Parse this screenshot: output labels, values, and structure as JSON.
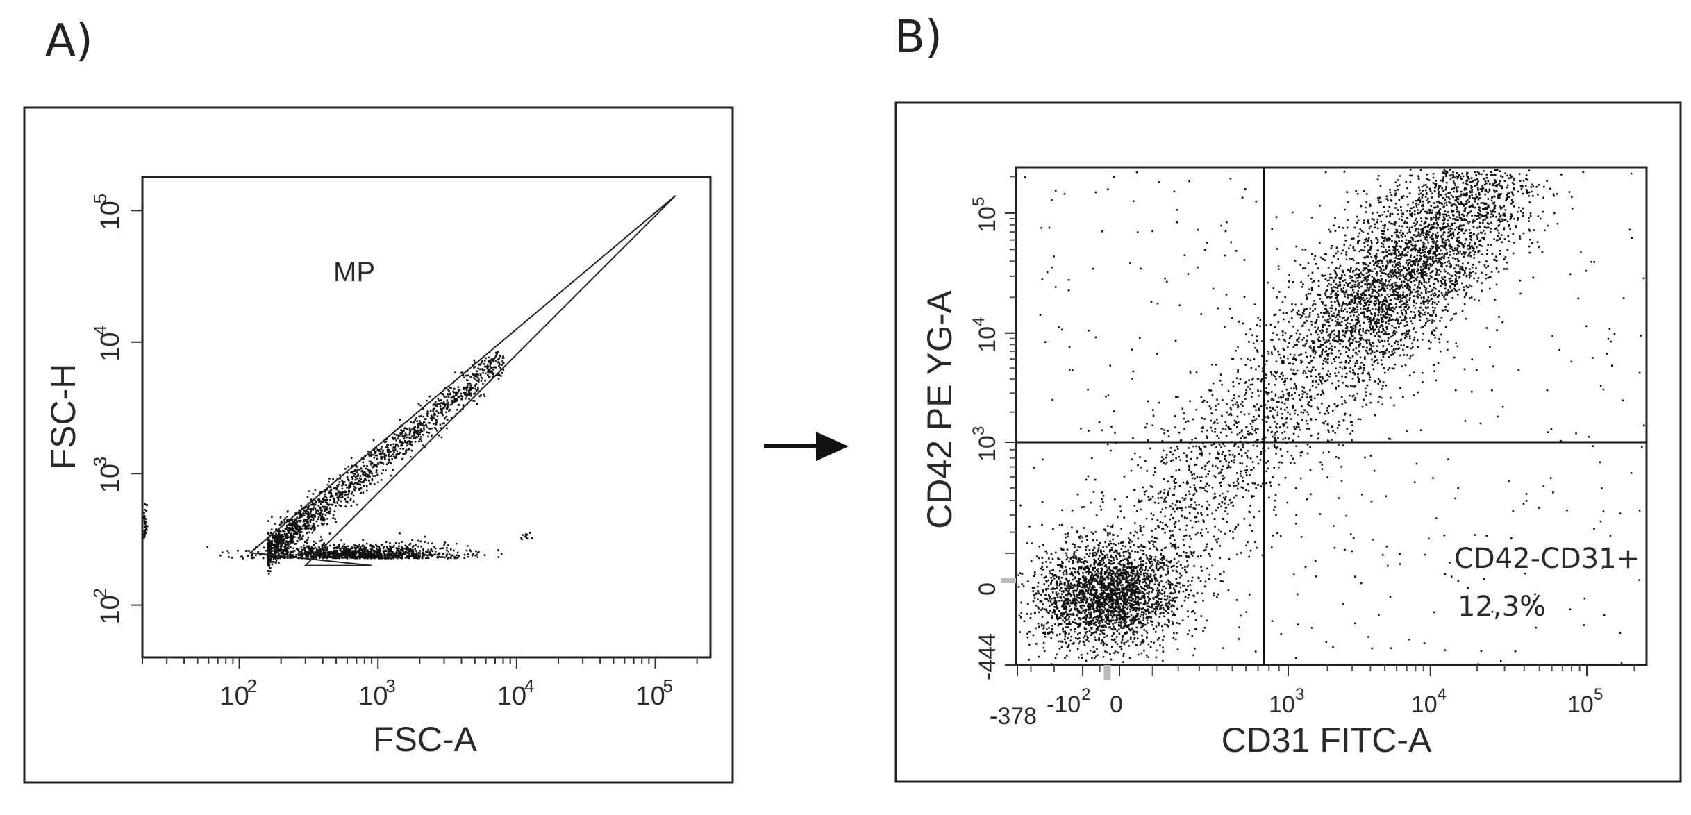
{
  "colors": {
    "ink": "#1a1a1a",
    "frame": "#222222",
    "background": "#ffffff"
  },
  "figure": {
    "arrow_icon": "right-arrow-icon"
  },
  "chart_data": [
    {
      "panel_label": "A)",
      "type": "scatter",
      "title": "",
      "xlabel": "FSC-A",
      "ylabel": "FSC-H",
      "x_scale": "log",
      "y_scale": "log",
      "xlim": [
        20,
        250000
      ],
      "ylim": [
        40,
        180000
      ],
      "x_ticks": [
        {
          "value": 100,
          "base": "10",
          "exp": "2"
        },
        {
          "value": 1000,
          "base": "10",
          "exp": "3"
        },
        {
          "value": 10000,
          "base": "10",
          "exp": "4"
        },
        {
          "value": 100000,
          "base": "10",
          "exp": "5"
        }
      ],
      "y_ticks": [
        {
          "value": 100,
          "base": "10",
          "exp": "2"
        },
        {
          "value": 1000,
          "base": "10",
          "exp": "3"
        },
        {
          "value": 10000,
          "base": "10",
          "exp": "4"
        },
        {
          "value": 100000,
          "base": "10",
          "exp": "5"
        }
      ],
      "gate": {
        "name": "MP",
        "name_position": [
          500,
          35000
        ],
        "shape": "polygon",
        "vertices": [
          [
            120,
            250
          ],
          [
            140000,
            130000
          ],
          [
            300,
            200
          ],
          [
            900,
            200
          ]
        ]
      },
      "populations": [
        {
          "name": "diagonal",
          "count": 1600,
          "x_range_log": [
            2.2,
            3.9
          ],
          "spread_log": 0.07
        },
        {
          "name": "base-cluster",
          "count": 1100,
          "center": [
            700,
            230
          ],
          "spread_log": [
            0.35,
            0.05
          ]
        },
        {
          "name": "left-edge",
          "count": 120,
          "center": [
            20,
            330
          ],
          "spread_log": [
            0.01,
            0.12
          ]
        },
        {
          "name": "outlier",
          "count": 12,
          "center": [
            11500,
            320
          ],
          "spread_log": [
            0.03,
            0.03
          ]
        }
      ]
    },
    {
      "panel_label": "B)",
      "type": "scatter",
      "title": "",
      "xlabel": "CD31 FITC-A",
      "ylabel": "CD42 PE YG-A",
      "x_scale": "biexponential",
      "y_scale": "biexponential",
      "x_ticks": [
        {
          "value": -378,
          "base": "-378",
          "exp": ""
        },
        {
          "value": -100,
          "base": "-10",
          "exp": "2"
        },
        {
          "value": 0,
          "base": "0",
          "exp": ""
        },
        {
          "value": 1000,
          "base": "10",
          "exp": "3"
        },
        {
          "value": 10000,
          "base": "10",
          "exp": "4"
        },
        {
          "value": 100000,
          "base": "10",
          "exp": "5"
        }
      ],
      "y_ticks": [
        {
          "value": -444,
          "base": "-444",
          "exp": ""
        },
        {
          "value": 0,
          "base": "0",
          "exp": ""
        },
        {
          "value": 1000,
          "base": "10",
          "exp": "3"
        },
        {
          "value": 10000,
          "base": "10",
          "exp": "4"
        },
        {
          "value": 100000,
          "base": "10",
          "exp": "5"
        }
      ],
      "quadrant_divider": {
        "x": 700,
        "y": 1100
      },
      "annotation": {
        "label": "CD42-CD31+",
        "value": "12,3%",
        "quadrant": "bottom-right"
      },
      "populations": [
        {
          "name": "double-negative",
          "count": 2400,
          "center": [
            -30,
            -50
          ],
          "spread": [
            0.055,
            0.05
          ]
        },
        {
          "name": "double-positive-upper",
          "count": 2600,
          "center": [
            9000,
            50000
          ],
          "spread": [
            0.05,
            0.06
          ]
        },
        {
          "name": "diagonal-bridge",
          "count": 2200,
          "from": [
            -30,
            -50
          ],
          "to": [
            9000,
            60000
          ]
        },
        {
          "name": "background",
          "count": 450
        }
      ]
    }
  ]
}
